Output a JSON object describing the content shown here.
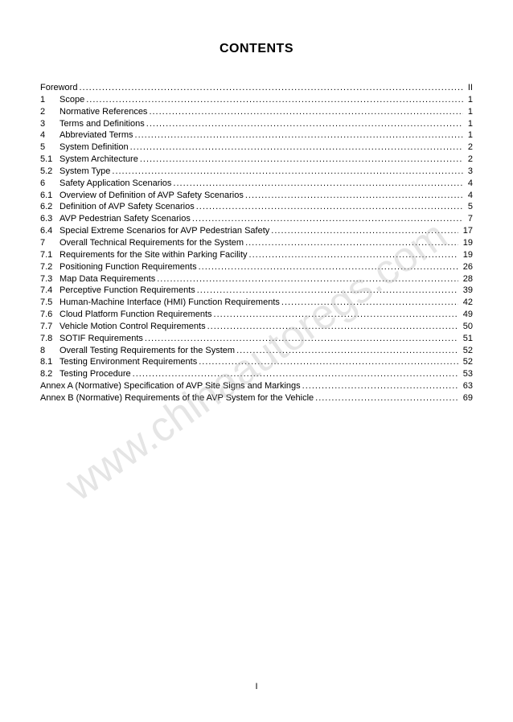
{
  "title": "CONTENTS",
  "watermark": "www.chinaautoregs.com",
  "footer_page": "I",
  "toc": [
    {
      "num": "",
      "label": "Foreword",
      "page": "II"
    },
    {
      "num": "1",
      "label": "Scope",
      "page": "1"
    },
    {
      "num": "2",
      "label": "Normative References",
      "page": "1"
    },
    {
      "num": "3",
      "label": "Terms and Definitions",
      "page": "1"
    },
    {
      "num": "4",
      "label": "Abbreviated Terms",
      "page": "1"
    },
    {
      "num": "5",
      "label": "System Definition",
      "page": "2"
    },
    {
      "num": "5.1",
      "label": "System Architecture",
      "page": "2"
    },
    {
      "num": "5.2",
      "label": "System Type",
      "page": "3"
    },
    {
      "num": "6",
      "label": "Safety Application Scenarios",
      "page": "4"
    },
    {
      "num": "6.1",
      "label": "Overview of Definition of AVP Safety Scenarios",
      "page": "4"
    },
    {
      "num": "6.2",
      "label": "Definition of AVP Safety Scenarios",
      "page": "5"
    },
    {
      "num": "6.3",
      "label": "AVP Pedestrian Safety Scenarios",
      "page": "7"
    },
    {
      "num": "6.4",
      "label": "Special Extreme Scenarios for AVP Pedestrian Safety",
      "page": "17"
    },
    {
      "num": "7",
      "label": "Overall Technical Requirements for the System",
      "page": "19"
    },
    {
      "num": "7.1",
      "label": "Requirements for the Site within Parking Facility",
      "page": "19"
    },
    {
      "num": "7.2",
      "label": "Positioning Function Requirements",
      "page": "26"
    },
    {
      "num": "7.3",
      "label": "Map Data Requirements",
      "page": "28"
    },
    {
      "num": "7.4",
      "label": "Perceptive Function Requirements",
      "page": "39"
    },
    {
      "num": "7.5",
      "label": "Human-Machine Interface (HMI) Function Requirements",
      "page": "42"
    },
    {
      "num": "7.6",
      "label": "Cloud Platform Function Requirements",
      "page": "49"
    },
    {
      "num": "7.7",
      "label": "Vehicle Motion Control Requirements",
      "page": "50"
    },
    {
      "num": "7.8",
      "label": "SOTIF Requirements",
      "page": "51"
    },
    {
      "num": "8",
      "label": "Overall Testing Requirements for the System",
      "page": "52"
    },
    {
      "num": "8.1",
      "label": "Testing Environment Requirements",
      "page": "52"
    },
    {
      "num": "8.2",
      "label": "Testing Procedure",
      "page": "53"
    },
    {
      "num": "",
      "label": "Annex A (Normative) Specification of AVP Site Signs and Markings",
      "page": "63"
    },
    {
      "num": "",
      "label": "Annex B (Normative) Requirements of the AVP System for the Vehicle",
      "page": "69"
    }
  ]
}
